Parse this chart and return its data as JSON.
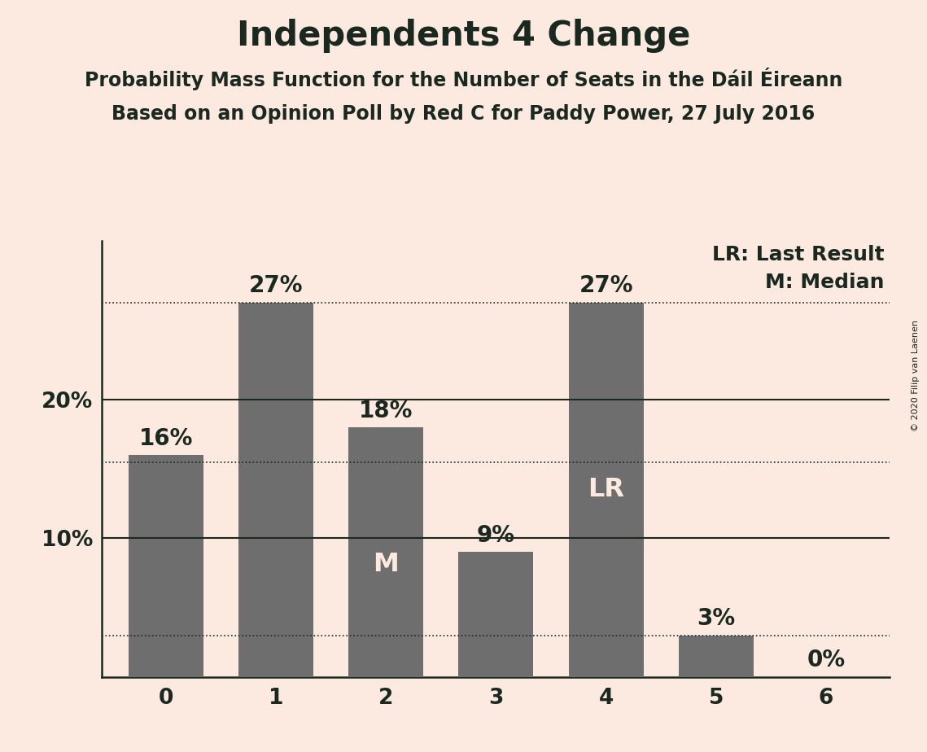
{
  "categories": [
    0,
    1,
    2,
    3,
    4,
    5,
    6
  ],
  "values": [
    0.16,
    0.27,
    0.18,
    0.09,
    0.27,
    0.03,
    0.0
  ],
  "bar_color": "#6e6e6e",
  "background_color": "#fce9e0",
  "title": "Independents 4 Change",
  "subtitle1": "Probability Mass Function for the Number of Seats in the Dáil Éireann",
  "subtitle2": "Based on an Opinion Poll by Red C for Paddy Power, 27 July 2016",
  "text_color": "#1a2820",
  "title_fontsize": 30,
  "subtitle_fontsize": 17,
  "bar_label_fontsize": 20,
  "tick_fontsize": 19,
  "legend_fontsize": 18,
  "copyright_text": "© 2020 Filip van Laenen",
  "yticks": [
    0.1,
    0.2
  ],
  "ytick_labels": [
    "10%",
    "20%"
  ],
  "dotted_lines": [
    0.27,
    0.155,
    0.03
  ],
  "solid_lines": [
    0.1,
    0.2
  ],
  "median_bar": 2,
  "last_result_bar": 4,
  "ylim": [
    0,
    0.315
  ],
  "bar_width": 0.68
}
